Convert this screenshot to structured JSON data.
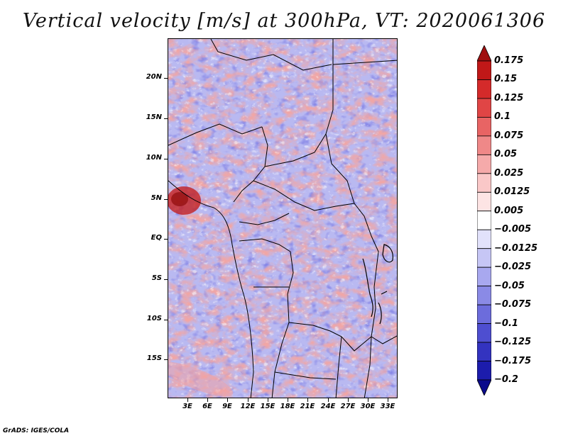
{
  "title": "Vertical velocity [m/s] at 300hPa, VT: 2020061306",
  "map": {
    "lat_labels": [
      "20N",
      "15N",
      "10N",
      "5N",
      "EQ",
      "5S",
      "10S",
      "15S"
    ],
    "lon_labels": [
      "3E",
      "6E",
      "9E",
      "12E",
      "15E",
      "18E",
      "21E",
      "24E",
      "27E",
      "30E",
      "33E"
    ]
  },
  "colorbar": {
    "labels": [
      "0.175",
      "0.15",
      "0.125",
      "0.1",
      "0.075",
      "0.05",
      "0.025",
      "0.0125",
      "0.005",
      "−0.005",
      "−0.0125",
      "−0.025",
      "−0.05",
      "−0.075",
      "−0.1",
      "−0.125",
      "−0.175",
      "−0.2"
    ],
    "colors": [
      "#a01010",
      "#c01818",
      "#d42a2a",
      "#e04545",
      "#e86464",
      "#ef8888",
      "#f5aaaa",
      "#fac8c8",
      "#fde4e4",
      "#ffffff",
      "#e2e2fb",
      "#c6c6f5",
      "#a8a8ef",
      "#8a8ae6",
      "#6c6cdc",
      "#4e4ed0",
      "#3333c0",
      "#1c1cac",
      "#0a0a8c"
    ]
  },
  "footer": "GrADS: IGES/COLA"
}
